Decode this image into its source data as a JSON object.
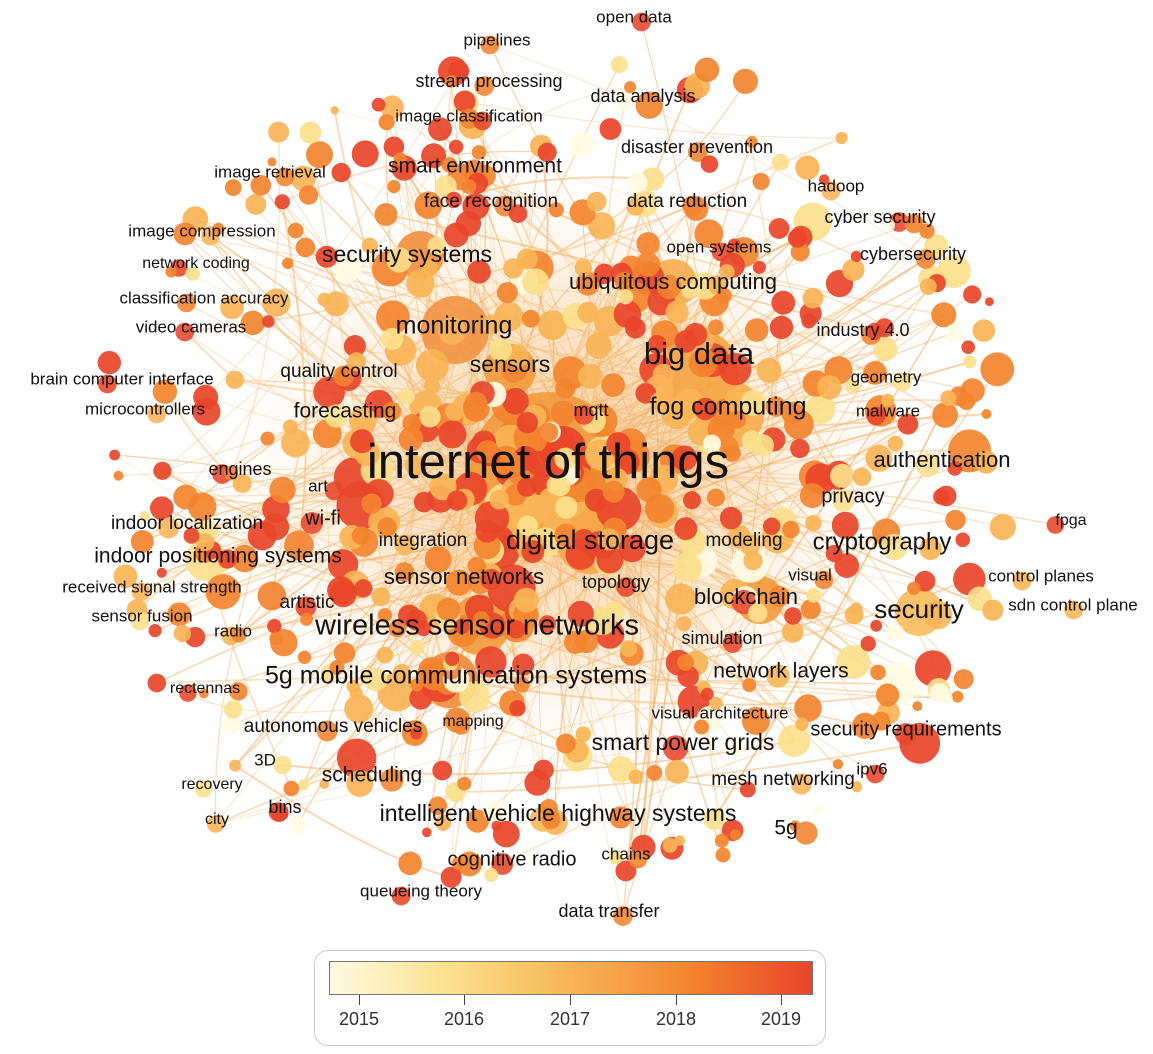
{
  "labels": [
    "open data",
    "pipelines",
    "stream processing",
    "data analysis",
    "image classification",
    "disaster prevention",
    "image retrieval",
    "smart environment",
    "hadoop",
    "face recognition",
    "data reduction",
    "cyber security",
    "image compression",
    "open systems",
    "cybersecurity",
    "network coding",
    "security systems",
    "ubiquitous computing",
    "classification accuracy",
    "video cameras",
    "monitoring",
    "industry 4.0",
    "big data",
    "sensors",
    "brain computer interface",
    "quality control",
    "geometry",
    "microcontrollers",
    "forecasting",
    "mqtt",
    "fog computing",
    "malware",
    "internet of things",
    "authentication",
    "engines",
    "art",
    "privacy",
    "fpga",
    "indoor localization",
    "wi-fi",
    "integration",
    "digital storage",
    "modeling",
    "cryptography",
    "indoor positioning systems",
    "visual",
    "control planes",
    "sensor networks",
    "topology",
    "received signal strength",
    "blockchain",
    "security",
    "sdn control plane",
    "artistic",
    "sensor fusion",
    "wireless sensor networks",
    "radio",
    "simulation",
    "network layers",
    "rectennas",
    "5g mobile communication systems",
    "visual architecture",
    "autonomous vehicles",
    "mapping",
    "security requirements",
    "smart power grids",
    "3D",
    "scheduling",
    "mesh networking",
    "ipv6",
    "recovery",
    "bins",
    "intelligent vehicle highway systems",
    "city",
    "5g",
    "cognitive radio",
    "chains",
    "queueing theory",
    "data transfer"
  ],
  "legend": {
    "ticks": [
      "2015",
      "2016",
      "2017",
      "2018",
      "2019"
    ],
    "colors": [
      "#fffbe3",
      "#fbe08c",
      "#f8b456",
      "#f3842f",
      "#e8452a"
    ]
  }
}
